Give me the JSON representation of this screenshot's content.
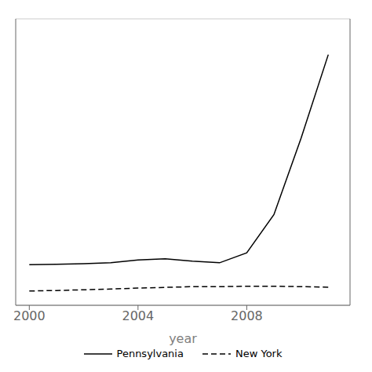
{
  "chart_data": {
    "type": "line",
    "x": [
      2000,
      2001,
      2002,
      2003,
      2004,
      2005,
      2006,
      2007,
      2008,
      2009,
      2010,
      2011
    ],
    "series": [
      {
        "name": "Pennsylvania",
        "color": "#000000",
        "line_style": "solid",
        "values": [
          170,
          172,
          174,
          178,
          190,
          195,
          185,
          178,
          220,
          380,
          700,
          1050
        ]
      },
      {
        "name": "New York",
        "color": "#000000",
        "line_style": "dashed",
        "values": [
          60,
          62,
          65,
          68,
          72,
          75,
          78,
          78,
          80,
          80,
          78,
          76
        ]
      }
    ],
    "xlabel": "year",
    "xlim": [
      1999.5,
      2011.8
    ],
    "ylim": [
      0,
      1200
    ],
    "xticks": [
      2000,
      2004,
      2008
    ],
    "yticks": [
      200,
      400,
      600,
      800,
      1000,
      1200
    ],
    "grid": "y",
    "legend": "bottom",
    "tick_labels": "x"
  }
}
